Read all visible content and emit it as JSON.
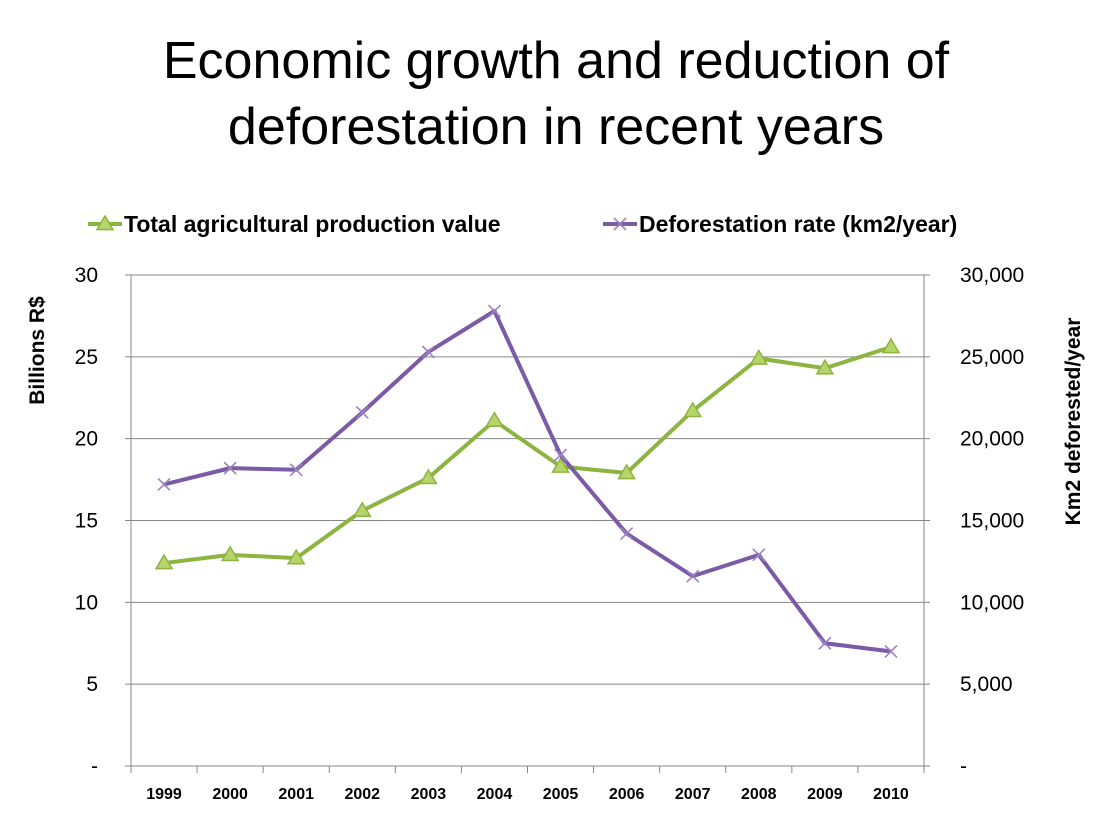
{
  "title_line1": "Economic growth and reduction of",
  "title_line2": "deforestation in recent years",
  "chart_data": {
    "type": "line",
    "categories": [
      "1999",
      "2000",
      "2001",
      "2002",
      "2003",
      "2004",
      "2005",
      "2006",
      "2007",
      "2008",
      "2009",
      "2010"
    ],
    "series": [
      {
        "name": "Total agricultural production value",
        "axis": "left",
        "color": "#8db440",
        "marker": "triangle",
        "values": [
          12.4,
          12.9,
          12.7,
          15.6,
          17.6,
          21.1,
          18.3,
          17.9,
          21.7,
          24.9,
          24.3,
          25.6
        ]
      },
      {
        "name": "Deforestation rate (km2/year)",
        "axis": "right",
        "color": "#7b5aa6",
        "marker": "x",
        "values": [
          17200,
          18200,
          18100,
          21600,
          25300,
          27800,
          19000,
          14200,
          11600,
          12900,
          7500,
          7000
        ]
      }
    ],
    "y_left": {
      "label": "Billions R$",
      "ylim": [
        0,
        30
      ],
      "ticks": [
        0,
        5,
        10,
        15,
        20,
        25,
        30
      ],
      "tick_labels": [
        "-",
        "5",
        "10",
        "15",
        "20",
        "25",
        "30"
      ]
    },
    "y_right": {
      "label": "Km2 deforested/year",
      "ylim": [
        0,
        30000
      ],
      "ticks": [
        0,
        5000,
        10000,
        15000,
        20000,
        25000,
        30000
      ],
      "tick_labels": [
        "-",
        "5,000",
        "10,000",
        "15,000",
        "20,000",
        "25,000",
        "30,000"
      ]
    },
    "grid": true,
    "legend": "top"
  }
}
